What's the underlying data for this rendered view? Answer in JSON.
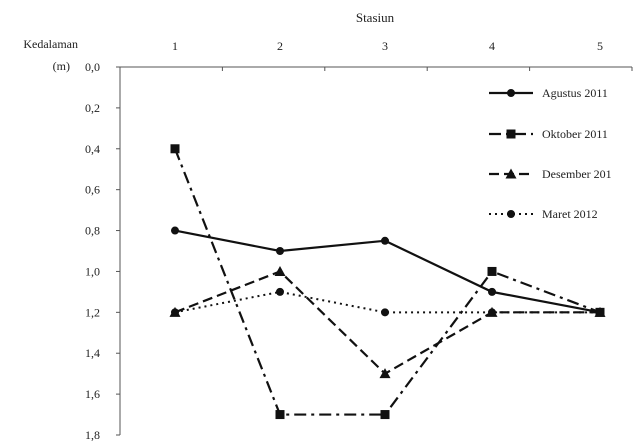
{
  "chart_data": {
    "type": "line",
    "title": "",
    "xlabel": "Stasiun",
    "ylabel": [
      "Kedalaman",
      "(m)"
    ],
    "x_axis_position": "top",
    "y_inverted": true,
    "categories": [
      "1",
      "2",
      "3",
      "4",
      "5"
    ],
    "yticks": [
      "0,0",
      "0,2",
      "0,4",
      "0,6",
      "0,8",
      "1,0",
      "1,2",
      "1,4",
      "1,6",
      "1,8"
    ],
    "ylim": [
      0,
      1.8
    ],
    "grid": false,
    "legend_position": "top-right",
    "series": [
      {
        "name": "Agustus 2011",
        "values": [
          0.8,
          0.9,
          0.85,
          1.1,
          1.2
        ],
        "marker": "circle",
        "dash": "solid",
        "color": "#111111"
      },
      {
        "name": "Oktober 2011",
        "values": [
          0.4,
          1.7,
          1.7,
          1.0,
          1.2
        ],
        "marker": "square",
        "dash": "dashdot",
        "color": "#111111"
      },
      {
        "name": "Desember 201",
        "values": [
          1.2,
          1.0,
          1.5,
          1.2,
          1.2
        ],
        "marker": "triangle",
        "dash": "dash",
        "color": "#111111"
      },
      {
        "name": "Maret 2012",
        "values": [
          1.2,
          1.1,
          1.2,
          1.2,
          1.2
        ],
        "marker": "circle",
        "dash": "dot",
        "color": "#111111"
      }
    ]
  }
}
